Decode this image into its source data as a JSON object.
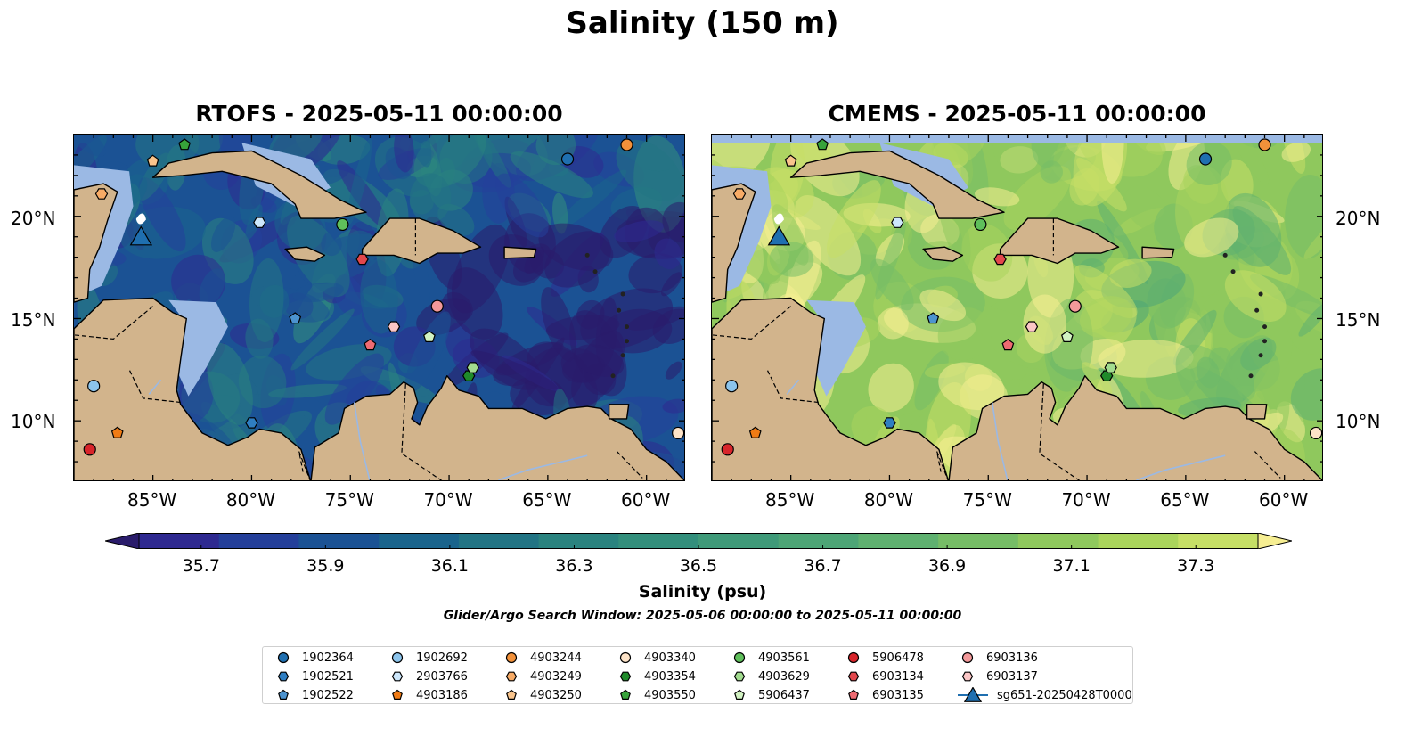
{
  "figure": {
    "title": "Salinity (150 m)",
    "window_text": "Glider/Argo Search Window: 2025-05-06 00:00:00 to 2025-05-11 00:00:00"
  },
  "panels": [
    {
      "title": "RTOFS - 2025-05-11 00:00:00",
      "palette_bias": -0.25
    },
    {
      "title": "CMEMS - 2025-05-11 00:00:00",
      "palette_bias": 0.35
    }
  ],
  "axes": {
    "lon_labels": [
      "85°W",
      "80°W",
      "75°W",
      "70°W",
      "65°W",
      "60°W"
    ],
    "lat_labels": [
      "20°N",
      "15°N",
      "10°N"
    ],
    "lon_range": [
      -89,
      -58
    ],
    "lat_range": [
      7,
      24
    ]
  },
  "colorbar": {
    "label": "Salinity (psu)",
    "range": [
      35.6,
      37.4
    ],
    "ticks": [
      "35.7",
      "35.9",
      "36.1",
      "36.3",
      "36.5",
      "36.7",
      "36.9",
      "37.1",
      "37.3"
    ],
    "colors": [
      "#2a1c6b",
      "#2e2990",
      "#243f9a",
      "#1b5294",
      "#1a648c",
      "#227484",
      "#2a837f",
      "#338f7c",
      "#3f9a79",
      "#4da576",
      "#5fb170",
      "#76bd66",
      "#8fc85d",
      "#aad45c",
      "#c6df66",
      "#f6ee92"
    ],
    "land_color": "#d2b48c",
    "shallow_color": "#9bb9e4"
  },
  "floats": [
    {
      "id": "1902364",
      "marker": "circle",
      "color": "#1f6fb0",
      "lon": -64.0,
      "lat": 22.8
    },
    {
      "id": "1902521",
      "marker": "hexagon",
      "color": "#2f7ec2",
      "lon": -80.0,
      "lat": 9.9
    },
    {
      "id": "1902522",
      "marker": "pentagon",
      "color": "#4c93cf",
      "lon": -77.8,
      "lat": 15.0
    },
    {
      "id": "1902692",
      "marker": "circle",
      "color": "#8cc4ec",
      "lon": -88.0,
      "lat": 11.7
    },
    {
      "id": "2903766",
      "marker": "hexagon",
      "color": "#cde7fb",
      "lon": -79.6,
      "lat": 19.7
    },
    {
      "id": "4903186",
      "marker": "pentagon",
      "color": "#f07b14",
      "lon": -86.8,
      "lat": 9.4
    },
    {
      "id": "4903244",
      "marker": "circle",
      "color": "#f2913a",
      "lon": -61.0,
      "lat": 23.5
    },
    {
      "id": "4903249",
      "marker": "hexagon",
      "color": "#f7ab66",
      "lon": -87.6,
      "lat": 21.1
    },
    {
      "id": "4903250",
      "marker": "pentagon",
      "color": "#f9c48c",
      "lon": -85.0,
      "lat": 22.7
    },
    {
      "id": "4903340",
      "marker": "circle",
      "color": "#fde3c8",
      "lon": -58.4,
      "lat": 9.4
    },
    {
      "id": "4903354",
      "marker": "hexagon",
      "color": "#1f8a2a",
      "lon": -69.0,
      "lat": 12.2
    },
    {
      "id": "4903550",
      "marker": "pentagon",
      "color": "#37a33a",
      "lon": -83.4,
      "lat": 23.5
    },
    {
      "id": "4903561",
      "marker": "circle",
      "color": "#5fbf5b",
      "lon": -75.4,
      "lat": 19.6
    },
    {
      "id": "4903629",
      "marker": "hexagon",
      "color": "#a2dc8f",
      "lon": -68.8,
      "lat": 12.6
    },
    {
      "id": "5906437",
      "marker": "pentagon",
      "color": "#d2f2c2",
      "lon": -71.0,
      "lat": 14.1
    },
    {
      "id": "5906478",
      "marker": "circle",
      "color": "#d8252b",
      "lon": -88.2,
      "lat": 8.6
    },
    {
      "id": "6903134",
      "marker": "hexagon",
      "color": "#e2474c",
      "lon": -74.4,
      "lat": 17.9
    },
    {
      "id": "6903135",
      "marker": "pentagon",
      "color": "#ee6b72",
      "lon": -74.0,
      "lat": 13.7
    },
    {
      "id": "6903136",
      "marker": "circle",
      "color": "#f3999a",
      "lon": -70.6,
      "lat": 15.6
    },
    {
      "id": "6903137",
      "marker": "hexagon",
      "color": "#fbc6c6",
      "lon": -72.8,
      "lat": 14.6
    }
  ],
  "glider": {
    "id": "sg651-20250428T0000",
    "marker": "triangle",
    "color": "#1f6fb0",
    "lon": -85.6,
    "lat": 18.9
  }
}
